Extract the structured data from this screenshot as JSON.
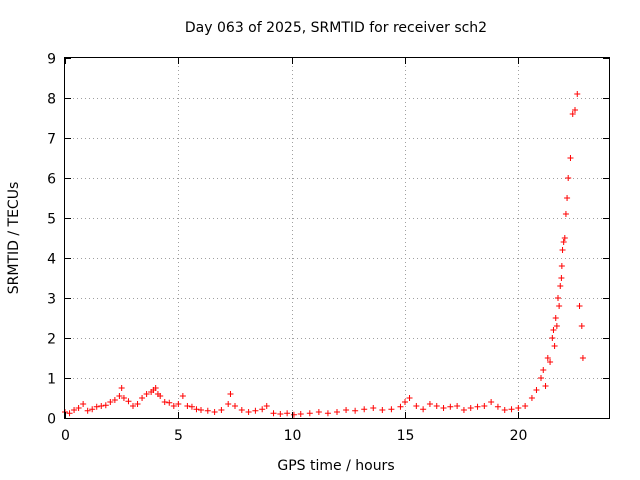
{
  "chart_data": {
    "type": "scatter",
    "title": "Day 063 of 2025, SRMTID for receiver sch2",
    "xlabel": "GPS time / hours",
    "ylabel": "SRMTID / TECUs",
    "xlim": [
      0,
      24
    ],
    "ylim": [
      0,
      9
    ],
    "xticks": [
      0,
      5,
      10,
      15,
      20
    ],
    "yticks": [
      0,
      1,
      2,
      3,
      4,
      5,
      6,
      7,
      8,
      9
    ],
    "grid": true,
    "marker": "+",
    "series": [
      {
        "name": "SRMTID",
        "color": "#ff0000",
        "x": [
          0.0,
          0.2,
          0.4,
          0.6,
          0.8,
          1.0,
          1.2,
          1.4,
          1.6,
          1.8,
          2.0,
          2.2,
          2.4,
          2.5,
          2.6,
          2.8,
          3.0,
          3.2,
          3.4,
          3.6,
          3.8,
          3.9,
          4.0,
          4.1,
          4.2,
          4.4,
          4.6,
          4.8,
          5.0,
          5.2,
          5.4,
          5.6,
          5.8,
          6.0,
          6.3,
          6.6,
          6.9,
          7.2,
          7.3,
          7.5,
          7.8,
          8.1,
          8.4,
          8.7,
          8.9,
          9.2,
          9.5,
          9.8,
          10.1,
          10.4,
          10.8,
          11.2,
          11.6,
          12.0,
          12.4,
          12.8,
          13.2,
          13.6,
          14.0,
          14.4,
          14.8,
          15.0,
          15.2,
          15.5,
          15.8,
          16.1,
          16.4,
          16.7,
          17.0,
          17.3,
          17.6,
          17.9,
          18.2,
          18.5,
          18.8,
          19.1,
          19.4,
          19.7,
          20.0,
          20.3,
          20.6,
          20.8,
          21.0,
          21.1,
          21.2,
          21.3,
          21.4,
          21.5,
          21.55,
          21.6,
          21.65,
          21.7,
          21.75,
          21.8,
          21.85,
          21.9,
          21.92,
          21.95,
          22.0,
          22.05,
          22.1,
          22.15,
          22.2,
          22.3,
          22.4,
          22.5,
          22.6,
          22.7,
          22.8,
          22.85
        ],
        "y": [
          0.15,
          0.12,
          0.2,
          0.25,
          0.35,
          0.18,
          0.22,
          0.28,
          0.3,
          0.32,
          0.4,
          0.45,
          0.55,
          0.75,
          0.5,
          0.42,
          0.3,
          0.35,
          0.5,
          0.6,
          0.65,
          0.7,
          0.75,
          0.6,
          0.55,
          0.4,
          0.38,
          0.3,
          0.35,
          0.55,
          0.3,
          0.28,
          0.22,
          0.2,
          0.18,
          0.15,
          0.2,
          0.35,
          0.6,
          0.3,
          0.2,
          0.15,
          0.18,
          0.22,
          0.3,
          0.12,
          0.1,
          0.12,
          0.08,
          0.1,
          0.12,
          0.15,
          0.12,
          0.15,
          0.2,
          0.18,
          0.22,
          0.25,
          0.2,
          0.22,
          0.28,
          0.4,
          0.5,
          0.3,
          0.22,
          0.35,
          0.3,
          0.25,
          0.28,
          0.3,
          0.2,
          0.25,
          0.28,
          0.3,
          0.4,
          0.28,
          0.2,
          0.22,
          0.25,
          0.3,
          0.5,
          0.7,
          1.0,
          1.2,
          0.8,
          1.5,
          1.4,
          2.0,
          2.2,
          1.8,
          2.5,
          2.3,
          3.0,
          2.8,
          3.3,
          3.5,
          3.8,
          4.2,
          4.4,
          4.5,
          5.1,
          5.5,
          6.0,
          6.5,
          7.6,
          7.7,
          8.1,
          2.8,
          2.3,
          1.5
        ]
      }
    ]
  }
}
